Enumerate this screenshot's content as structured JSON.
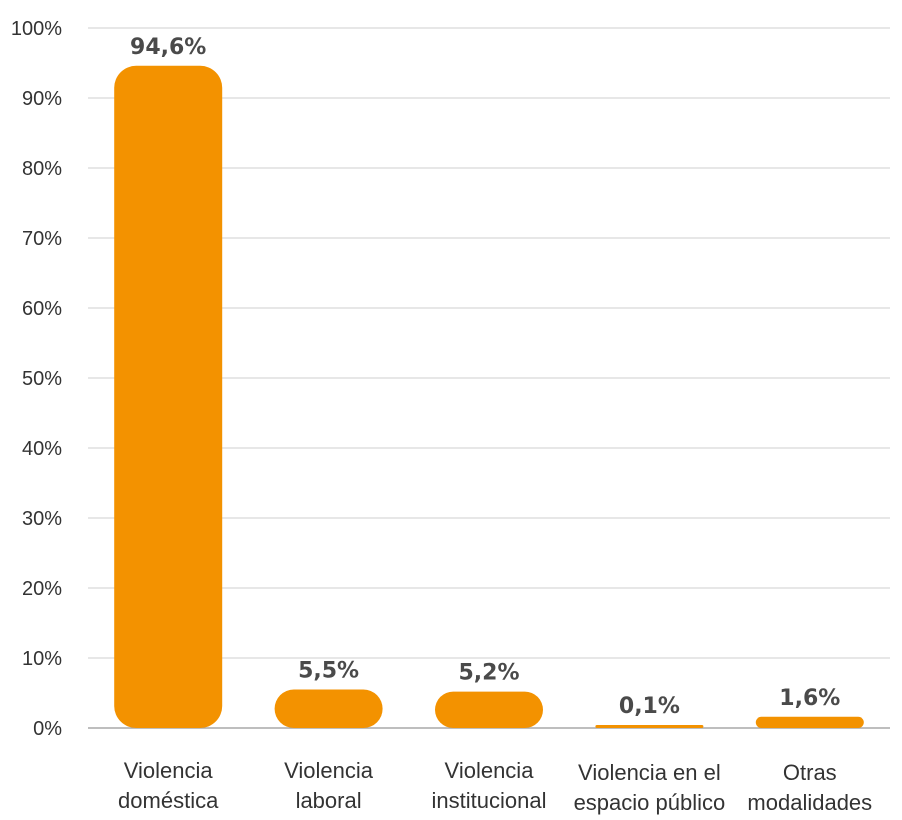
{
  "chart_data": {
    "type": "bar",
    "title": "",
    "xlabel": "",
    "ylabel": "",
    "ylim": [
      0,
      100
    ],
    "y_ticks": [
      "0%",
      "10%",
      "20%",
      "30%",
      "40%",
      "50%",
      "60%",
      "70%",
      "80%",
      "90%",
      "100%"
    ],
    "grid": true,
    "bar_color": "#f39200",
    "categories": [
      [
        "Violencia",
        "doméstica"
      ],
      [
        "Violencia",
        "laboral"
      ],
      [
        "Violencia",
        "institucional"
      ],
      [
        "Violencia en el",
        "espacio público"
      ],
      [
        "Otras",
        "modalidades"
      ]
    ],
    "values": [
      94.6,
      5.5,
      5.2,
      0.1,
      1.6
    ],
    "value_labels": [
      "94,6%",
      "5,5%",
      "5,2%",
      "0,1%",
      "1,6%"
    ]
  }
}
